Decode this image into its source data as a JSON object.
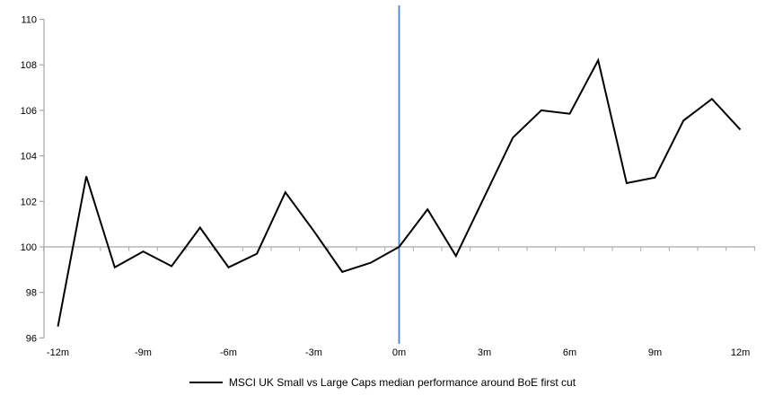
{
  "chart_data": {
    "type": "line",
    "title": "",
    "xlabel": "",
    "ylabel": "",
    "x_unit_suffix": "m",
    "x": [
      -12,
      -11,
      -10,
      -9,
      -8,
      -7,
      -6,
      -5,
      -4,
      -3,
      -2,
      -1,
      0,
      1,
      2,
      3,
      4,
      5,
      6,
      7,
      8,
      9,
      10,
      11,
      12
    ],
    "series": [
      {
        "name": "MSCI UK Small vs Large Caps median performance around BoE first cut",
        "color": "#000000",
        "values": [
          96.5,
          103.1,
          99.1,
          99.8,
          99.15,
          100.85,
          99.1,
          99.7,
          102.4,
          100.7,
          98.9,
          99.3,
          100.0,
          101.65,
          99.6,
          102.2,
          104.8,
          106.0,
          105.85,
          108.2,
          102.8,
          103.05,
          105.55,
          106.5,
          105.15
        ]
      }
    ],
    "y_ticks": [
      96,
      98,
      100,
      102,
      104,
      106,
      108,
      110
    ],
    "x_tick_labels": [
      "-12m",
      "-9m",
      "-6m",
      "-3m",
      "0m",
      "3m",
      "6m",
      "9m",
      "12m"
    ],
    "x_tick_positions": [
      -12,
      -9,
      -6,
      -3,
      0,
      3,
      6,
      9,
      12
    ],
    "ylim": [
      96,
      110
    ],
    "xlim": [
      -12.5,
      12.5
    ],
    "grid": false,
    "legend_position": "bottom",
    "baseline": {
      "value": 100,
      "color": "#a6a6a6"
    },
    "event_line": {
      "x": 0,
      "color": "#4a86c6"
    },
    "axis_color": "#a6a6a6",
    "tick_label_color": "#000000"
  },
  "legend": {
    "label": "MSCI UK Small vs Large Caps median performance around BoE first cut"
  }
}
